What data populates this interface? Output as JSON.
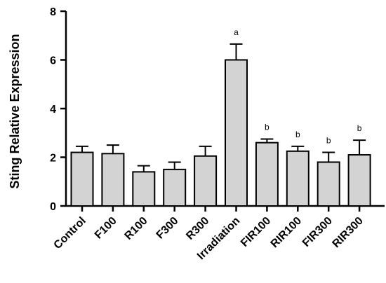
{
  "chart_data": {
    "type": "bar",
    "title": "",
    "xlabel": "",
    "ylabel": "Sting Relative Expression",
    "ylim": [
      0,
      8
    ],
    "yticks": [
      0,
      2,
      4,
      6,
      8
    ],
    "grid": false,
    "legend": "none",
    "categories": [
      "Control",
      "F100",
      "R100",
      "F300",
      "R300",
      "Irradiation",
      "FIR100",
      "RIR100",
      "FIR300",
      "RIR300"
    ],
    "series": [
      {
        "values": [
          2.2,
          2.15,
          1.4,
          1.5,
          2.05,
          6.0,
          2.6,
          2.25,
          1.8,
          2.1
        ],
        "errors": [
          0.25,
          0.35,
          0.25,
          0.3,
          0.4,
          0.65,
          0.15,
          0.2,
          0.4,
          0.6
        ],
        "annotations": [
          "",
          "",
          "",
          "",
          "",
          "a",
          "b",
          "b",
          "b",
          "b"
        ]
      }
    ],
    "colors": {
      "bar_fill": "#d3d3d3",
      "bar_stroke": "#000000",
      "axis": "#000000"
    }
  }
}
